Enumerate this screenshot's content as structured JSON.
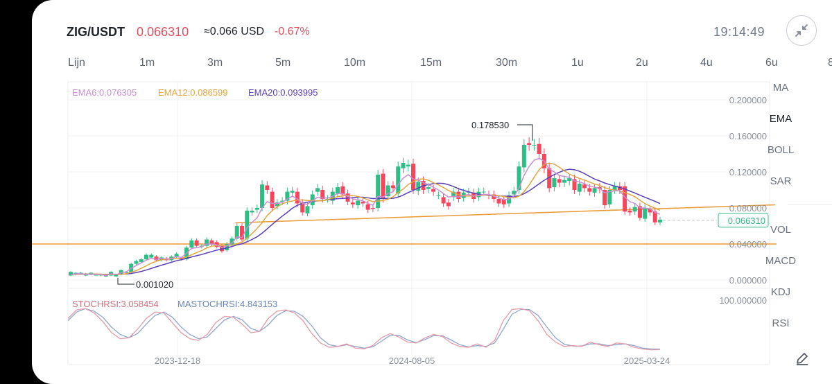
{
  "header": {
    "pair": "ZIG/USDT",
    "price": "0.066310",
    "approx": "≈0.066 USD",
    "change": "-0.67%",
    "time": "19:14:49",
    "exit_fullscreen_icon": "collapse-arrows-icon"
  },
  "intervals": [
    "Lijn",
    "1m",
    "3m",
    "5m",
    "10m",
    "15m",
    "30m",
    "1u",
    "2u",
    "4u",
    "6u",
    "8"
  ],
  "indicators": {
    "main": [
      "MA",
      "EMA",
      "BOLL",
      "SAR"
    ],
    "sub": [
      "VOL",
      "MACD",
      "KDJ",
      "RSI"
    ],
    "active": "EMA",
    "draw_icon": "pencil-icon"
  },
  "colors": {
    "up": "#2ebd85",
    "down": "#f6465d",
    "ema6": "#c98ed1",
    "ema12": "#e3a53f",
    "ema20": "#5b3fb8",
    "trendline": "#e99a34",
    "stoch": "#e39aa8",
    "mastoch": "#8fa6cf"
  },
  "chart_data": {
    "type": "candlestick",
    "ema_legend": [
      {
        "name": "EMA6",
        "label": "EMA6:0.076305"
      },
      {
        "name": "EMA12",
        "label": "EMA12:0.086599"
      },
      {
        "name": "EMA20",
        "label": "EMA20:0.093995"
      }
    ],
    "y_ticks": [
      "0.200000",
      "0.160000",
      "0.120000",
      "0.080000",
      "0.040000",
      "0.000000"
    ],
    "ylim": [
      0,
      0.2
    ],
    "last_price_label": "0.066310",
    "high_label": "0.178530",
    "low_label": "0.001020",
    "x_ticks": [
      "2023-12-18",
      "2024-08-05",
      "2025-03-24"
    ],
    "horizontal_line": 0.04,
    "trendline": [
      [
        0.026,
        0.168
      ],
      [
        0.995,
        0.088
      ]
    ],
    "candles": [
      [
        0.005,
        0.009
      ],
      [
        0.006,
        0.008
      ],
      [
        0.007,
        0.008
      ],
      [
        0.005,
        0.007
      ],
      [
        0.006,
        0.008
      ],
      [
        0.005,
        0.006
      ],
      [
        0.005,
        0.006
      ],
      [
        0.004,
        0.005
      ],
      [
        0.005,
        0.009
      ],
      [
        0.004,
        0.006
      ],
      [
        0.006,
        0.011
      ],
      [
        0.008,
        0.009
      ],
      [
        0.009,
        0.018
      ],
      [
        0.018,
        0.021
      ],
      [
        0.02,
        0.023
      ],
      [
        0.023,
        0.028
      ],
      [
        0.025,
        0.028
      ],
      [
        0.026,
        0.022
      ],
      [
        0.022,
        0.025
      ],
      [
        0.024,
        0.022
      ],
      [
        0.022,
        0.026
      ],
      [
        0.026,
        0.029
      ],
      [
        0.024,
        0.023
      ],
      [
        0.023,
        0.036
      ],
      [
        0.036,
        0.044
      ],
      [
        0.044,
        0.038
      ],
      [
        0.037,
        0.038
      ],
      [
        0.038,
        0.045
      ],
      [
        0.044,
        0.04
      ],
      [
        0.042,
        0.037
      ],
      [
        0.038,
        0.032
      ],
      [
        0.033,
        0.04
      ],
      [
        0.039,
        0.046
      ],
      [
        0.046,
        0.06
      ],
      [
        0.06,
        0.045
      ],
      [
        0.046,
        0.077
      ],
      [
        0.075,
        0.077
      ],
      [
        0.078,
        0.08
      ],
      [
        0.08,
        0.106
      ],
      [
        0.105,
        0.1
      ],
      [
        0.098,
        0.08
      ],
      [
        0.082,
        0.086
      ],
      [
        0.087,
        0.088
      ],
      [
        0.088,
        0.098
      ],
      [
        0.097,
        0.099
      ],
      [
        0.098,
        0.085
      ],
      [
        0.086,
        0.075
      ],
      [
        0.074,
        0.082
      ],
      [
        0.083,
        0.095
      ],
      [
        0.098,
        0.102
      ],
      [
        0.1,
        0.09
      ],
      [
        0.09,
        0.09
      ],
      [
        0.088,
        0.098
      ],
      [
        0.096,
        0.103
      ],
      [
        0.104,
        0.095
      ],
      [
        0.096,
        0.087
      ],
      [
        0.086,
        0.084
      ],
      [
        0.083,
        0.088
      ],
      [
        0.087,
        0.085
      ],
      [
        0.084,
        0.078
      ],
      [
        0.08,
        0.079
      ],
      [
        0.08,
        0.117
      ],
      [
        0.118,
        0.09
      ],
      [
        0.093,
        0.105
      ],
      [
        0.105,
        0.102
      ],
      [
        0.096,
        0.126
      ],
      [
        0.124,
        0.13
      ],
      [
        0.126,
        0.128
      ],
      [
        0.129,
        0.1
      ],
      [
        0.099,
        0.109
      ],
      [
        0.11,
        0.1
      ],
      [
        0.101,
        0.103
      ],
      [
        0.101,
        0.098
      ],
      [
        0.094,
        0.094
      ],
      [
        0.092,
        0.085
      ],
      [
        0.086,
        0.082
      ],
      [
        0.092,
        0.098
      ],
      [
        0.098,
        0.09
      ],
      [
        0.091,
        0.097
      ],
      [
        0.097,
        0.098
      ],
      [
        0.097,
        0.09
      ],
      [
        0.092,
        0.098
      ],
      [
        0.098,
        0.098
      ],
      [
        0.095,
        0.094
      ],
      [
        0.095,
        0.09
      ],
      [
        0.09,
        0.085
      ],
      [
        0.089,
        0.084
      ],
      [
        0.085,
        0.094
      ],
      [
        0.095,
        0.099
      ],
      [
        0.1,
        0.126
      ],
      [
        0.125,
        0.15
      ],
      [
        0.152,
        0.15
      ],
      [
        0.15,
        0.15
      ],
      [
        0.151,
        0.14
      ],
      [
        0.14,
        0.124
      ],
      [
        0.124,
        0.102
      ],
      [
        0.103,
        0.113
      ],
      [
        0.112,
        0.108
      ],
      [
        0.108,
        0.111
      ],
      [
        0.11,
        0.113
      ],
      [
        0.112,
        0.1
      ],
      [
        0.098,
        0.107
      ],
      [
        0.106,
        0.102
      ],
      [
        0.102,
        0.098
      ],
      [
        0.097,
        0.102
      ],
      [
        0.103,
        0.101
      ],
      [
        0.1,
        0.083
      ],
      [
        0.084,
        0.1
      ],
      [
        0.1,
        0.104
      ],
      [
        0.104,
        0.1
      ],
      [
        0.104,
        0.076
      ],
      [
        0.077,
        0.075
      ],
      [
        0.076,
        0.081
      ],
      [
        0.082,
        0.069
      ],
      [
        0.068,
        0.08
      ],
      [
        0.079,
        0.075
      ],
      [
        0.076,
        0.064
      ],
      [
        0.064,
        0.067
      ]
    ],
    "ema6": [
      0.006,
      0.007,
      0.007,
      0.006,
      0.007,
      0.006,
      0.006,
      0.005,
      0.007,
      0.006,
      0.008,
      0.009,
      0.013,
      0.016,
      0.019,
      0.022,
      0.024,
      0.023,
      0.024,
      0.023,
      0.024,
      0.026,
      0.025,
      0.03,
      0.035,
      0.036,
      0.037,
      0.04,
      0.04,
      0.039,
      0.036,
      0.038,
      0.041,
      0.048,
      0.047,
      0.058,
      0.064,
      0.069,
      0.08,
      0.087,
      0.085,
      0.085,
      0.086,
      0.09,
      0.093,
      0.09,
      0.085,
      0.084,
      0.088,
      0.092,
      0.091,
      0.091,
      0.093,
      0.096,
      0.096,
      0.093,
      0.09,
      0.089,
      0.088,
      0.085,
      0.083,
      0.093,
      0.092,
      0.096,
      0.098,
      0.106,
      0.113,
      0.117,
      0.112,
      0.111,
      0.108,
      0.106,
      0.103,
      0.1,
      0.096,
      0.092,
      0.093,
      0.092,
      0.094,
      0.095,
      0.093,
      0.094,
      0.095,
      0.095,
      0.093,
      0.091,
      0.089,
      0.09,
      0.093,
      0.102,
      0.116,
      0.126,
      0.133,
      0.135,
      0.132,
      0.123,
      0.12,
      0.116,
      0.115,
      0.114,
      0.11,
      0.109,
      0.107,
      0.104,
      0.103,
      0.102,
      0.097,
      0.098,
      0.099,
      0.099,
      0.092,
      0.087,
      0.085,
      0.08,
      0.08,
      0.079,
      0.075,
      0.073
    ]
  },
  "stoch": {
    "legend": [
      {
        "name": "STOCHRSI",
        "label": "STOCHRSI:3.058454"
      },
      {
        "name": "MASTOCHRSI",
        "label": "MASTOCHRSI:4.843153"
      }
    ],
    "y_tick": "100.000000",
    "stochrsi": [
      75,
      95,
      98,
      88,
      68,
      42,
      28,
      30,
      50,
      75,
      90,
      88,
      65,
      42,
      28,
      24,
      38,
      66,
      80,
      78,
      62,
      42,
      45,
      75,
      92,
      95,
      88,
      70,
      40,
      18,
      8,
      10,
      16,
      6,
      4,
      12,
      30,
      40,
      32,
      20,
      18,
      30,
      38,
      33,
      18,
      10,
      8,
      16,
      8,
      24,
      70,
      96,
      98,
      93,
      70,
      38,
      20,
      10,
      12,
      10,
      20,
      14,
      10,
      18,
      16,
      8,
      4,
      2,
      3
    ],
    "mastochrsi": [
      70,
      90,
      98,
      92,
      78,
      55,
      38,
      30,
      40,
      62,
      82,
      90,
      78,
      55,
      38,
      28,
      32,
      52,
      72,
      80,
      72,
      52,
      45,
      60,
      82,
      93,
      92,
      80,
      58,
      30,
      14,
      10,
      14,
      10,
      6,
      9,
      22,
      36,
      36,
      25,
      19,
      26,
      35,
      35,
      25,
      14,
      9,
      12,
      10,
      18,
      50,
      85,
      96,
      96,
      82,
      55,
      30,
      15,
      11,
      11,
      16,
      16,
      12,
      14,
      16,
      12,
      6,
      4,
      4
    ]
  }
}
